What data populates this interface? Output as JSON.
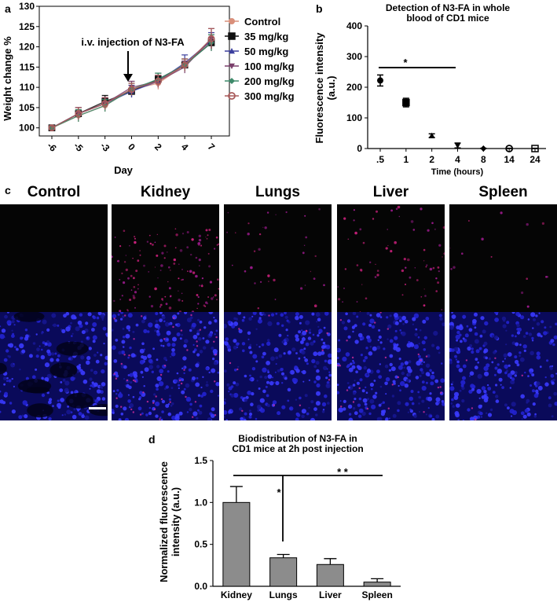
{
  "panel_labels": {
    "a": "a",
    "b": "b",
    "c": "c",
    "d": "d"
  },
  "panel_a": {
    "ylabel": "Weight change %",
    "xlabel": "Day",
    "annotation": "i.v. injection of N3-FA",
    "yticks": [
      "100",
      "105",
      "110",
      "115",
      "120",
      "125",
      "130"
    ],
    "xticks": [
      "-6",
      "-5",
      "-3",
      "0",
      "2",
      "4",
      "7"
    ],
    "legend": [
      {
        "label": "Control",
        "color": "#d98f7a",
        "marker": "circle"
      },
      {
        "label": "35 mg/kg",
        "color": "#111111",
        "marker": "square"
      },
      {
        "label": "50 mg/kg",
        "color": "#3b3f9e",
        "marker": "triangle-up"
      },
      {
        "label": "100 mg/kg",
        "color": "#7a3f6b",
        "marker": "triangle-down"
      },
      {
        "label": "200 mg/kg",
        "color": "#3d8a6a",
        "marker": "diamond"
      },
      {
        "label": "300  mg/kg",
        "color": "#a85a5a",
        "marker": "circle-open"
      }
    ]
  },
  "panel_b": {
    "title_line1": "Detection of N3-FA in whole",
    "title_line2": "blood of CD1 mice",
    "ylabel_line1": "Fluorescence intensity",
    "ylabel_line2": "(a.u.)",
    "xlabel": "Time (hours)",
    "yticks": [
      "0",
      "100",
      "200",
      "300",
      "400"
    ],
    "xticks": [
      ".5",
      "1",
      "2",
      "4",
      "8",
      "14",
      "24"
    ],
    "sig": "*"
  },
  "panel_c": {
    "labels": [
      "Control",
      "Kidney",
      "Lungs",
      "Liver",
      "Spleen"
    ]
  },
  "panel_d": {
    "title_line1": "Biodistribution of N3-FA in",
    "title_line2": "CD1 mice at 2h post injection",
    "ylabel_line1": "Normalized fluorescence",
    "ylabel_line2": "intensity (a.u.)",
    "yticks": [
      "0.0",
      "0.5",
      "1.0",
      "1.5"
    ],
    "sig_single": "*",
    "sig_double": "* *"
  },
  "chart_data": [
    {
      "type": "line",
      "panel": "a",
      "x": [
        -6,
        -5,
        -3,
        0,
        2,
        4,
        7
      ],
      "xlabel": "Day",
      "ylabel": "Weight change %",
      "ylim": [
        98,
        130
      ],
      "series": [
        {
          "name": "Control",
          "values": [
            100,
            103,
            105.5,
            109.5,
            111,
            115.5,
            121.5
          ],
          "err": [
            0.5,
            1.5,
            1.5,
            1.5,
            1.5,
            1.5,
            2
          ]
        },
        {
          "name": "35 mg/kg",
          "values": [
            100,
            103.5,
            106.5,
            109,
            112,
            115.5,
            121
          ],
          "err": [
            0.5,
            1.5,
            1.5,
            1.5,
            1.5,
            1.5,
            2
          ]
        },
        {
          "name": "50 mg/kg",
          "values": [
            100,
            103.5,
            106,
            109,
            111.5,
            116,
            121.5
          ],
          "err": [
            0.5,
            1.5,
            1.5,
            1.5,
            1.5,
            2,
            2
          ]
        },
        {
          "name": "100 mg/kg",
          "values": [
            100,
            103.5,
            106,
            110,
            111.5,
            115,
            122
          ],
          "err": [
            0.5,
            1.5,
            1.5,
            1.5,
            1.5,
            1.5,
            2.5
          ]
        },
        {
          "name": "200 mg/kg",
          "values": [
            100,
            103,
            105.5,
            109.5,
            112,
            115.5,
            121
          ],
          "err": [
            0.5,
            1.5,
            1.5,
            1.5,
            1.5,
            1.5,
            2
          ]
        },
        {
          "name": "300  mg/kg",
          "values": [
            100,
            103.5,
            106,
            109.5,
            111.5,
            115.5,
            122
          ],
          "err": [
            0.5,
            1.5,
            1.5,
            1.5,
            1.5,
            1.5,
            2.5
          ]
        }
      ]
    },
    {
      "type": "scatter",
      "panel": "b",
      "title": "Detection of N3-FA in whole blood of CD1 mice",
      "categories": [
        ".5",
        "1",
        "2",
        "4",
        "8",
        "14",
        "24"
      ],
      "values": [
        222,
        150,
        42,
        10,
        0,
        0,
        0
      ],
      "err": [
        18,
        14,
        6,
        8,
        1,
        1,
        1
      ],
      "markers": [
        "circle",
        "square",
        "triangle-up",
        "triangle-down",
        "diamond",
        "circle-open",
        "square-open"
      ],
      "xlabel": "Time (hours)",
      "ylabel": "Fluorescence intensity (a.u.)",
      "ylim": [
        0,
        400
      ]
    },
    {
      "type": "bar",
      "panel": "d",
      "title": "Biodistribution of N3-FA in CD1 mice at 2h post injection",
      "categories": [
        "Kidney",
        "Lungs",
        "Liver",
        "Spleen"
      ],
      "values": [
        1.0,
        0.34,
        0.26,
        0.05
      ],
      "err": [
        0.19,
        0.04,
        0.07,
        0.04
      ],
      "ylabel": "Normalized fluorescence intensity (a.u.)",
      "ylim": [
        0,
        1.5
      ]
    }
  ]
}
